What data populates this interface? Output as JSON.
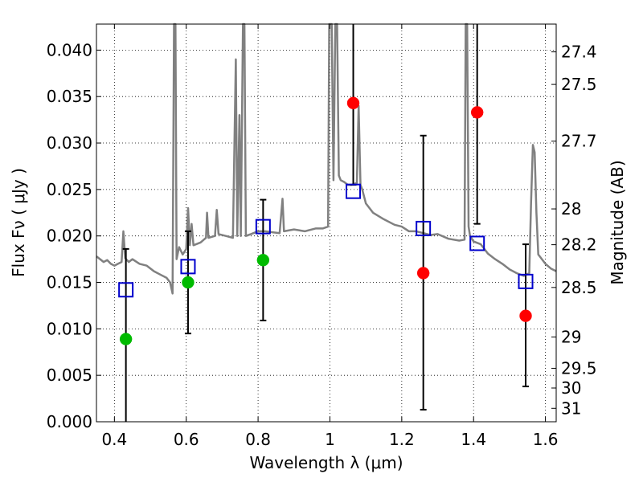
{
  "chart_data": {
    "type": "scatter",
    "xlabel": "Wavelength  λ (μm)",
    "ylabel": "Flux  Fν  ( μJy )",
    "y2label": "Magnitude (AB)",
    "xlim": [
      0.35,
      1.63
    ],
    "ylim": [
      0.0,
      0.0428
    ],
    "grid": true,
    "x_ticks": [
      0.4,
      0.6,
      0.8,
      1.0,
      1.2,
      1.4,
      1.6
    ],
    "x_tick_labels": [
      "0.4",
      "0.6",
      "0.8",
      "1",
      "1.2",
      "1.4",
      "1.6"
    ],
    "y_ticks": [
      0.0,
      0.005,
      0.01,
      0.015,
      0.02,
      0.025,
      0.03,
      0.035,
      0.04
    ],
    "y_tick_labels": [
      "0.000",
      "0.005",
      "0.010",
      "0.015",
      "0.020",
      "0.025",
      "0.030",
      "0.035",
      "0.040"
    ],
    "mag_ticks": [
      "27.4",
      "27.5",
      "27.7",
      "28",
      "28.2",
      "28.5",
      "29",
      "29.5",
      "30",
      "31"
    ],
    "observed": [
      {
        "x": 0.432,
        "y": 0.0089,
        "err_low": 0.0,
        "err_high": 0.0186,
        "color": "#00bb00"
      },
      {
        "x": 0.605,
        "y": 0.015,
        "err_low": 0.0095,
        "err_high": 0.0205,
        "color": "#00bb00"
      },
      {
        "x": 0.814,
        "y": 0.0174,
        "err_low": 0.0109,
        "err_high": 0.0239,
        "color": "#00bb00"
      },
      {
        "x": 1.065,
        "y": 0.0343,
        "err_low": 0.0255,
        "err_high": 0.0428,
        "color": "#ff0000"
      },
      {
        "x": 1.26,
        "y": 0.016,
        "err_low": 0.0013,
        "err_high": 0.0308,
        "color": "#ff0000"
      },
      {
        "x": 1.41,
        "y": 0.0333,
        "err_low": 0.0213,
        "err_high": 0.0428,
        "color": "#ff0000"
      },
      {
        "x": 1.545,
        "y": 0.0114,
        "err_low": 0.0038,
        "err_high": 0.0191,
        "color": "#ff0000"
      }
    ],
    "model": [
      {
        "x": 0.432,
        "y": 0.0142
      },
      {
        "x": 0.605,
        "y": 0.0167
      },
      {
        "x": 0.814,
        "y": 0.021
      },
      {
        "x": 1.065,
        "y": 0.0248
      },
      {
        "x": 1.26,
        "y": 0.0208
      },
      {
        "x": 1.41,
        "y": 0.0192
      },
      {
        "x": 1.545,
        "y": 0.0151
      }
    ],
    "spectrum": [
      [
        0.35,
        0.0178
      ],
      [
        0.36,
        0.0175
      ],
      [
        0.37,
        0.0172
      ],
      [
        0.38,
        0.0174
      ],
      [
        0.39,
        0.017
      ],
      [
        0.4,
        0.0168
      ],
      [
        0.41,
        0.017
      ],
      [
        0.42,
        0.0172
      ],
      [
        0.425,
        0.0205
      ],
      [
        0.43,
        0.0176
      ],
      [
        0.44,
        0.0172
      ],
      [
        0.45,
        0.0175
      ],
      [
        0.47,
        0.017
      ],
      [
        0.49,
        0.0168
      ],
      [
        0.51,
        0.0162
      ],
      [
        0.53,
        0.0158
      ],
      [
        0.545,
        0.0155
      ],
      [
        0.555,
        0.015
      ],
      [
        0.562,
        0.0138
      ],
      [
        0.566,
        0.0428
      ],
      [
        0.57,
        0.0428
      ],
      [
        0.573,
        0.0175
      ],
      [
        0.58,
        0.0188
      ],
      [
        0.59,
        0.018
      ],
      [
        0.6,
        0.0186
      ],
      [
        0.605,
        0.023
      ],
      [
        0.61,
        0.019
      ],
      [
        0.615,
        0.0213
      ],
      [
        0.62,
        0.019
      ],
      [
        0.64,
        0.0193
      ],
      [
        0.655,
        0.0198
      ],
      [
        0.658,
        0.0225
      ],
      [
        0.662,
        0.0198
      ],
      [
        0.68,
        0.02
      ],
      [
        0.685,
        0.0228
      ],
      [
        0.69,
        0.0202
      ],
      [
        0.71,
        0.02
      ],
      [
        0.73,
        0.0198
      ],
      [
        0.738,
        0.039
      ],
      [
        0.742,
        0.02
      ],
      [
        0.748,
        0.033
      ],
      [
        0.752,
        0.02
      ],
      [
        0.758,
        0.0428
      ],
      [
        0.762,
        0.0428
      ],
      [
        0.766,
        0.02
      ],
      [
        0.78,
        0.0202
      ],
      [
        0.8,
        0.0205
      ],
      [
        0.82,
        0.0205
      ],
      [
        0.84,
        0.0204
      ],
      [
        0.86,
        0.0203
      ],
      [
        0.868,
        0.024
      ],
      [
        0.872,
        0.0205
      ],
      [
        0.9,
        0.0207
      ],
      [
        0.93,
        0.0205
      ],
      [
        0.96,
        0.0208
      ],
      [
        0.98,
        0.0208
      ],
      [
        0.995,
        0.021
      ],
      [
        0.998,
        0.0428
      ],
      [
        1.005,
        0.0428
      ],
      [
        1.01,
        0.026
      ],
      [
        1.015,
        0.0428
      ],
      [
        1.02,
        0.043
      ],
      [
        1.025,
        0.0265
      ],
      [
        1.03,
        0.026
      ],
      [
        1.04,
        0.0258
      ],
      [
        1.05,
        0.0255
      ],
      [
        1.06,
        0.0255
      ],
      [
        1.075,
        0.0257
      ],
      [
        1.08,
        0.034
      ],
      [
        1.085,
        0.0255
      ],
      [
        1.09,
        0.025
      ],
      [
        1.1,
        0.0235
      ],
      [
        1.12,
        0.0225
      ],
      [
        1.15,
        0.0218
      ],
      [
        1.18,
        0.0212
      ],
      [
        1.2,
        0.021
      ],
      [
        1.22,
        0.0205
      ],
      [
        1.24,
        0.0205
      ],
      [
        1.26,
        0.0203
      ],
      [
        1.28,
        0.0201
      ],
      [
        1.3,
        0.0202
      ],
      [
        1.33,
        0.0197
      ],
      [
        1.36,
        0.0195
      ],
      [
        1.375,
        0.0196
      ],
      [
        1.378,
        0.0428
      ],
      [
        1.382,
        0.0428
      ],
      [
        1.386,
        0.021
      ],
      [
        1.39,
        0.02
      ],
      [
        1.4,
        0.0194
      ],
      [
        1.42,
        0.0191
      ],
      [
        1.44,
        0.0181
      ],
      [
        1.46,
        0.0175
      ],
      [
        1.48,
        0.017
      ],
      [
        1.5,
        0.0164
      ],
      [
        1.52,
        0.016
      ],
      [
        1.54,
        0.0157
      ],
      [
        1.555,
        0.016
      ],
      [
        1.56,
        0.0235
      ],
      [
        1.565,
        0.0298
      ],
      [
        1.57,
        0.029
      ],
      [
        1.575,
        0.0225
      ],
      [
        1.58,
        0.018
      ],
      [
        1.6,
        0.017
      ],
      [
        1.615,
        0.0165
      ],
      [
        1.625,
        0.0163
      ],
      [
        1.63,
        0.0162
      ]
    ]
  }
}
